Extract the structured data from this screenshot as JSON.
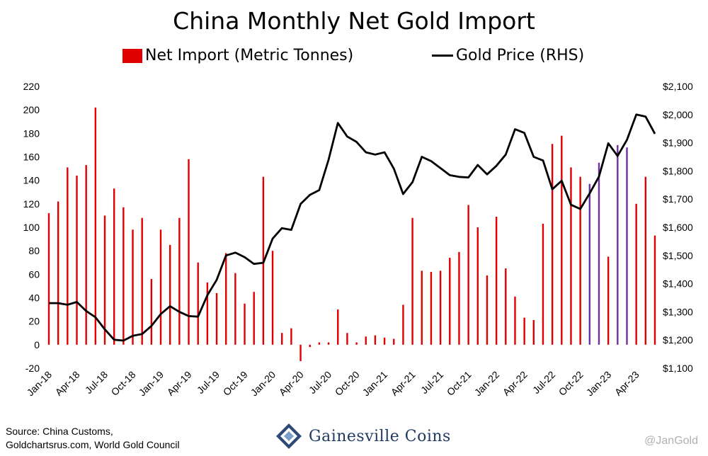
{
  "title": "China Monthly Net Gold Import",
  "legend": {
    "bar_label": "Net Import (Metric Tonnes)",
    "line_label": "Gold Price (RHS)"
  },
  "footer": {
    "source_line1": "Source: China Customs,",
    "source_line2": "Goldchartsrus.com, World Gold Council",
    "logo_text": "Gainesville Coins",
    "handle": "@JanGold"
  },
  "colors": {
    "bar": "#e00000",
    "bar_highlight": "#7030a0",
    "line": "#000000"
  },
  "chart_data": {
    "type": "bar",
    "title": "China Monthly Net Gold Import",
    "x_ticks": [
      "Jan-18",
      "Apr-18",
      "Jul-18",
      "Oct-18",
      "Jan-19",
      "Apr-19",
      "Jul-19",
      "Oct-19",
      "Jan-20",
      "Apr-20",
      "Jul-20",
      "Oct-20",
      "Jan-21",
      "Apr-21",
      "Jul-21",
      "Oct-21",
      "Jan-22",
      "Apr-22",
      "Jul-22",
      "Oct-22",
      "Jan-23",
      "Apr-23"
    ],
    "ylim_left": [
      -20,
      220
    ],
    "yticks_left": [
      "-20",
      "0",
      "20",
      "40",
      "60",
      "80",
      "100",
      "120",
      "140",
      "160",
      "180",
      "200",
      "220"
    ],
    "ylim_right": [
      1100,
      2100
    ],
    "yticks_right": [
      "$1,100",
      "$1,200",
      "$1,300",
      "$1,400",
      "$1,500",
      "$1,600",
      "$1,700",
      "$1,800",
      "$1,900",
      "$2,000",
      "$2,100"
    ],
    "grid": false,
    "legend_position": "top",
    "months": [
      "Jan-18",
      "Feb-18",
      "Mar-18",
      "Apr-18",
      "May-18",
      "Jun-18",
      "Jul-18",
      "Aug-18",
      "Sep-18",
      "Oct-18",
      "Nov-18",
      "Dec-18",
      "Jan-19",
      "Feb-19",
      "Mar-19",
      "Apr-19",
      "May-19",
      "Jun-19",
      "Jul-19",
      "Aug-19",
      "Sep-19",
      "Oct-19",
      "Nov-19",
      "Dec-19",
      "Jan-20",
      "Feb-20",
      "Mar-20",
      "Apr-20",
      "May-20",
      "Jun-20",
      "Jul-20",
      "Aug-20",
      "Sep-20",
      "Oct-20",
      "Nov-20",
      "Dec-20",
      "Jan-21",
      "Feb-21",
      "Mar-21",
      "Apr-21",
      "May-21",
      "Jun-21",
      "Jul-21",
      "Aug-21",
      "Sep-21",
      "Oct-21",
      "Nov-21",
      "Dec-21",
      "Jan-22",
      "Feb-22",
      "Mar-22",
      "Apr-22",
      "May-22",
      "Jun-22",
      "Jul-22",
      "Aug-22",
      "Sep-22",
      "Oct-22",
      "Nov-22",
      "Dec-22",
      "Jan-23",
      "Feb-23",
      "Mar-23",
      "Apr-23",
      "May-23",
      "Jun-23"
    ],
    "series": [
      {
        "name": "Net Import (Metric Tonnes)",
        "type": "bar",
        "axis": "left",
        "values": [
          112,
          122,
          151,
          144,
          153,
          202,
          110,
          133,
          117,
          98,
          108,
          56,
          98,
          85,
          108,
          158,
          70,
          53,
          44,
          78,
          61,
          35,
          45,
          143,
          80,
          10,
          14,
          -14,
          -2,
          2,
          2,
          30,
          10,
          2,
          7,
          8,
          6,
          5,
          34,
          108,
          63,
          62,
          63,
          74,
          79,
          119,
          100,
          59,
          109,
          65,
          41,
          23,
          21,
          103,
          171,
          178,
          151,
          143,
          137,
          155,
          75,
          170,
          168,
          120,
          143,
          93
        ],
        "highlight_indices": [
          58,
          59,
          61,
          62
        ]
      },
      {
        "name": "Gold Price (RHS)",
        "type": "line",
        "axis": "right",
        "values": [
          1331,
          1331,
          1325,
          1335,
          1303,
          1281,
          1238,
          1201,
          1198,
          1215,
          1221,
          1250,
          1292,
          1320,
          1300,
          1285,
          1283,
          1359,
          1413,
          1500,
          1510,
          1494,
          1470,
          1474,
          1560,
          1597,
          1591,
          1683,
          1715,
          1732,
          1840,
          1970,
          1922,
          1903,
          1866,
          1858,
          1866,
          1808,
          1718,
          1760,
          1850,
          1835,
          1810,
          1785,
          1779,
          1777,
          1821,
          1788,
          1818,
          1858,
          1948,
          1935,
          1850,
          1837,
          1735,
          1765,
          1680,
          1665,
          1720,
          1780,
          1898,
          1853,
          1910,
          2000,
          1993,
          1932
        ]
      }
    ]
  }
}
